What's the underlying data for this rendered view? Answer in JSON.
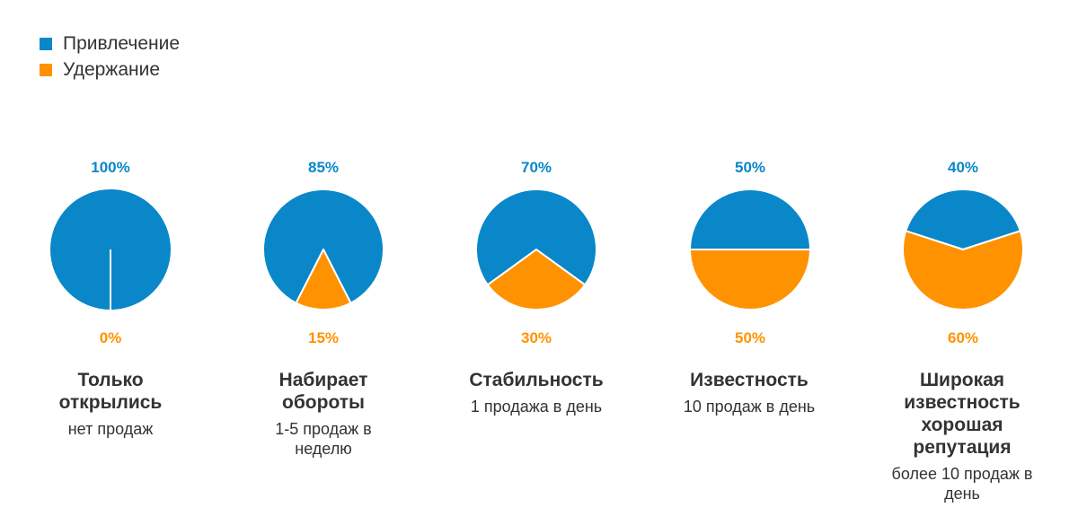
{
  "legend": [
    {
      "label": "Привлечение",
      "color": "#0a87c9"
    },
    {
      "label": "Удержание",
      "color": "#ff9200"
    }
  ],
  "chart_data": {
    "type": "pie",
    "title": "",
    "series_names": [
      "Привлечение",
      "Удержание"
    ],
    "colors": [
      "#0a87c9",
      "#ff9200"
    ],
    "pies": [
      {
        "acquisition": 100,
        "retention": 0,
        "acq_label": "100%",
        "ret_label": "0%",
        "title": "Только открылись",
        "desc": "нет продаж"
      },
      {
        "acquisition": 85,
        "retention": 15,
        "acq_label": "85%",
        "ret_label": "15%",
        "title": "Набирает обороты",
        "desc": "1-5 продаж в неделю"
      },
      {
        "acquisition": 70,
        "retention": 30,
        "acq_label": "70%",
        "ret_label": "30%",
        "title": "Стабильность",
        "desc": "1 продажа в день"
      },
      {
        "acquisition": 50,
        "retention": 50,
        "acq_label": "50%",
        "ret_label": "50%",
        "title": "Известность",
        "desc": "10 продаж в день"
      },
      {
        "acquisition": 40,
        "retention": 60,
        "acq_label": "40%",
        "ret_label": "60%",
        "title": "Широкая известность хорошая репутация",
        "desc": "более 10 продаж в день"
      }
    ]
  }
}
